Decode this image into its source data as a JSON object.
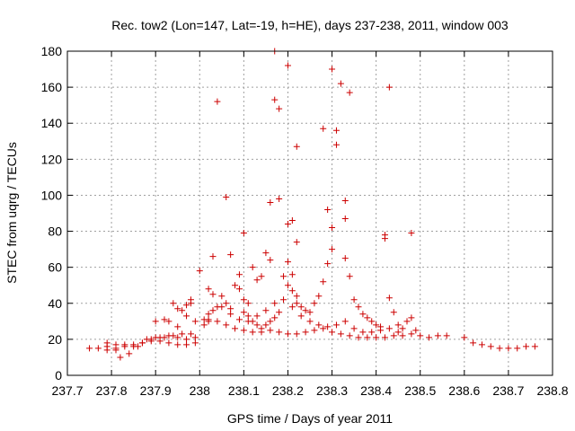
{
  "chart_data": {
    "type": "scatter",
    "title": "Rec. tow2 (Lon=147, Lat=-19, h=HE), days 237-238, 2011, window 003",
    "xlabel": "GPS time / Days of year 2011",
    "ylabel": "STEC from uqrg / TECUs",
    "xlim": [
      237.7,
      238.8
    ],
    "ylim": [
      0,
      180
    ],
    "xticks": [
      "237.7",
      "237.8",
      "237.9",
      "238",
      "238.1",
      "238.2",
      "238.3",
      "238.4",
      "238.5",
      "238.6",
      "238.7",
      "238.8"
    ],
    "yticks": [
      "0",
      "20",
      "40",
      "60",
      "80",
      "100",
      "120",
      "140",
      "160",
      "180"
    ],
    "grid": true,
    "marker": "plus",
    "color": "#cc0000",
    "points": [
      [
        237.75,
        15
      ],
      [
        237.77,
        15
      ],
      [
        237.79,
        14
      ],
      [
        237.81,
        15
      ],
      [
        237.83,
        16
      ],
      [
        237.85,
        17
      ],
      [
        237.87,
        18
      ],
      [
        237.89,
        19
      ],
      [
        237.91,
        19
      ],
      [
        237.93,
        18
      ],
      [
        237.95,
        17
      ],
      [
        237.97,
        17
      ],
      [
        237.99,
        18
      ],
      [
        237.79,
        18
      ],
      [
        237.81,
        17
      ],
      [
        237.83,
        17
      ],
      [
        237.85,
        16
      ],
      [
        237.87,
        18
      ],
      [
        237.89,
        20
      ],
      [
        237.91,
        21
      ],
      [
        237.93,
        22
      ],
      [
        237.95,
        21
      ],
      [
        237.97,
        20
      ],
      [
        237.99,
        21
      ],
      [
        237.79,
        16
      ],
      [
        237.81,
        14
      ],
      [
        237.82,
        10
      ],
      [
        237.84,
        12
      ],
      [
        237.86,
        16
      ],
      [
        237.88,
        20
      ],
      [
        237.9,
        21
      ],
      [
        237.92,
        21
      ],
      [
        237.94,
        22
      ],
      [
        237.96,
        23
      ],
      [
        237.98,
        23
      ],
      [
        237.9,
        30
      ],
      [
        237.92,
        31
      ],
      [
        237.93,
        30
      ],
      [
        237.95,
        27
      ],
      [
        237.94,
        40
      ],
      [
        237.95,
        37
      ],
      [
        237.96,
        36
      ],
      [
        237.97,
        39
      ],
      [
        237.98,
        40
      ],
      [
        237.98,
        42
      ],
      [
        237.97,
        33
      ],
      [
        237.99,
        30
      ],
      [
        238.0,
        58
      ],
      [
        238.01,
        28
      ],
      [
        238.02,
        31
      ],
      [
        238.02,
        48
      ],
      [
        238.03,
        66
      ],
      [
        238.04,
        152
      ],
      [
        238.06,
        99
      ],
      [
        238.07,
        67
      ],
      [
        238.02,
        34
      ],
      [
        238.03,
        36
      ],
      [
        238.04,
        38
      ],
      [
        238.05,
        44
      ],
      [
        238.06,
        40
      ],
      [
        238.07,
        37
      ],
      [
        238.08,
        50
      ],
      [
        238.09,
        56
      ],
      [
        238.1,
        42
      ],
      [
        238.11,
        40
      ],
      [
        238.12,
        60
      ],
      [
        238.13,
        53
      ],
      [
        238.14,
        55
      ],
      [
        238.15,
        68
      ],
      [
        238.16,
        64
      ],
      [
        238.1,
        79
      ],
      [
        238.09,
        48
      ],
      [
        238.1,
        35
      ],
      [
        238.11,
        33
      ],
      [
        238.12,
        30
      ],
      [
        238.13,
        28
      ],
      [
        238.14,
        26
      ],
      [
        238.15,
        28
      ],
      [
        238.16,
        30
      ],
      [
        238.17,
        32
      ],
      [
        238.18,
        35
      ],
      [
        238.17,
        180
      ],
      [
        238.17,
        153
      ],
      [
        238.18,
        148
      ],
      [
        238.2,
        172
      ],
      [
        238.16,
        96
      ],
      [
        238.18,
        98
      ],
      [
        238.2,
        84
      ],
      [
        238.21,
        86
      ],
      [
        238.22,
        74
      ],
      [
        238.22,
        127
      ],
      [
        238.2,
        63
      ],
      [
        238.19,
        55
      ],
      [
        238.2,
        50
      ],
      [
        238.21,
        56
      ],
      [
        238.21,
        47
      ],
      [
        238.22,
        44
      ],
      [
        238.22,
        40
      ],
      [
        238.23,
        38
      ],
      [
        238.24,
        36
      ],
      [
        238.25,
        35
      ],
      [
        238.26,
        40
      ],
      [
        238.27,
        44
      ],
      [
        238.28,
        52
      ],
      [
        238.29,
        62
      ],
      [
        238.29,
        92
      ],
      [
        238.3,
        170
      ],
      [
        238.28,
        137
      ],
      [
        238.3,
        82
      ],
      [
        238.3,
        70
      ],
      [
        238.31,
        136
      ],
      [
        238.31,
        128
      ],
      [
        238.32,
        162
      ],
      [
        238.33,
        97
      ],
      [
        238.33,
        87
      ],
      [
        238.34,
        157
      ],
      [
        238.33,
        65
      ],
      [
        238.34,
        55
      ],
      [
        238.35,
        42
      ],
      [
        238.36,
        38
      ],
      [
        238.37,
        34
      ],
      [
        238.38,
        32
      ],
      [
        238.39,
        30
      ],
      [
        238.4,
        28
      ],
      [
        238.41,
        27
      ],
      [
        238.42,
        76
      ],
      [
        238.42,
        78
      ],
      [
        238.43,
        160
      ],
      [
        238.48,
        79
      ],
      [
        238.43,
        43
      ],
      [
        238.44,
        35
      ],
      [
        238.45,
        28
      ],
      [
        238.46,
        26
      ],
      [
        238.47,
        30
      ],
      [
        238.48,
        32
      ],
      [
        238.49,
        25
      ],
      [
        238.01,
        31
      ],
      [
        238.02,
        30
      ],
      [
        238.04,
        30
      ],
      [
        238.06,
        28
      ],
      [
        238.08,
        26
      ],
      [
        238.1,
        25
      ],
      [
        238.12,
        24
      ],
      [
        238.14,
        24
      ],
      [
        238.16,
        25
      ],
      [
        238.18,
        24
      ],
      [
        238.2,
        23
      ],
      [
        238.22,
        23
      ],
      [
        238.24,
        24
      ],
      [
        238.26,
        25
      ],
      [
        238.28,
        26
      ],
      [
        238.3,
        24
      ],
      [
        238.32,
        23
      ],
      [
        238.34,
        22
      ],
      [
        238.36,
        21
      ],
      [
        238.38,
        21
      ],
      [
        238.4,
        21
      ],
      [
        238.42,
        21
      ],
      [
        238.44,
        22
      ],
      [
        238.46,
        22
      ],
      [
        238.48,
        23
      ],
      [
        238.5,
        22
      ],
      [
        238.52,
        21
      ],
      [
        238.54,
        22
      ],
      [
        238.56,
        22
      ],
      [
        238.6,
        21
      ],
      [
        238.62,
        18
      ],
      [
        238.64,
        17
      ],
      [
        238.66,
        16
      ],
      [
        238.68,
        15
      ],
      [
        238.7,
        15
      ],
      [
        238.72,
        15
      ],
      [
        238.74,
        16
      ],
      [
        238.76,
        16
      ],
      [
        238.03,
        45
      ],
      [
        238.05,
        38
      ],
      [
        238.07,
        34
      ],
      [
        238.09,
        31
      ],
      [
        238.11,
        30
      ],
      [
        238.13,
        33
      ],
      [
        238.15,
        36
      ],
      [
        238.17,
        40
      ],
      [
        238.19,
        42
      ],
      [
        238.21,
        38
      ],
      [
        238.23,
        33
      ],
      [
        238.25,
        30
      ],
      [
        238.27,
        28
      ],
      [
        238.29,
        27
      ],
      [
        238.31,
        28
      ],
      [
        238.33,
        30
      ],
      [
        238.35,
        26
      ],
      [
        238.37,
        24
      ],
      [
        238.39,
        24
      ],
      [
        238.41,
        25
      ],
      [
        238.43,
        26
      ],
      [
        238.45,
        24
      ]
    ]
  }
}
